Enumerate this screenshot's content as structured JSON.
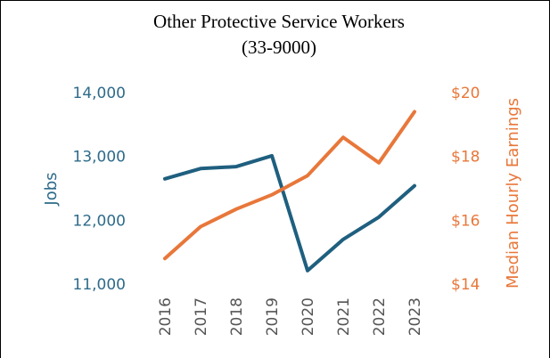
{
  "chart_data": {
    "type": "line",
    "title_line1": "Other Protective Service Workers",
    "title_line2": "(33-9000)",
    "categories": [
      "2016",
      "2017",
      "2018",
      "2019",
      "2020",
      "2021",
      "2022",
      "2023"
    ],
    "y_left": {
      "label": "Jobs",
      "ticks": [
        "11,000",
        "12,000",
        "13,000",
        "14,000"
      ],
      "range": [
        11000,
        14000
      ],
      "color": "#2e6b8a"
    },
    "y_right": {
      "label": "Median Hourly Earnings",
      "ticks": [
        "$14",
        "$16",
        "$18",
        "$20"
      ],
      "range": [
        14,
        20
      ],
      "color": "#e8773a"
    },
    "series": [
      {
        "name": "Jobs",
        "axis": "left",
        "color": "#1f5f7f",
        "values": [
          12650,
          12810,
          12840,
          13010,
          11210,
          11700,
          12050,
          12540
        ]
      },
      {
        "name": "Median Hourly Earnings",
        "axis": "right",
        "color": "#e8773a",
        "values": [
          14.8,
          15.8,
          16.35,
          16.8,
          17.4,
          18.6,
          17.8,
          19.4
        ]
      }
    ],
    "grid": false,
    "legend": "none"
  }
}
